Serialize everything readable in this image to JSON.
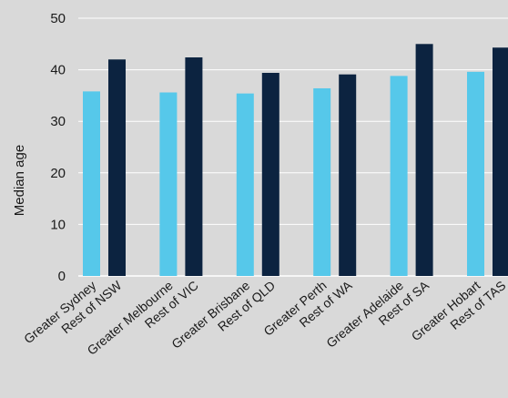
{
  "chart_data": {
    "type": "bar",
    "title": "",
    "xlabel": "",
    "ylabel": "Median age",
    "ylim": [
      0,
      50
    ],
    "yticks": [
      0,
      10,
      20,
      30,
      40,
      50
    ],
    "grid": true,
    "legend": "none",
    "categories": [
      "Greater Sydney",
      "Rest of NSW",
      "Greater Melbourne",
      "Rest of VIC",
      "Greater Brisbane",
      "Rest of QLD",
      "Greater Perth",
      "Rest of WA",
      "Greater Adelaide",
      "Rest of SA",
      "Greater Hobart",
      "Rest of TAS"
    ],
    "values": [
      35.8,
      42.0,
      35.6,
      42.4,
      35.4,
      39.4,
      36.4,
      39.1,
      38.8,
      45.0,
      39.6,
      44.3
    ],
    "colors": {
      "greater": "#56c8ea",
      "rest": "#0c2340",
      "grid": "#ffffff",
      "axis": "#ffffff"
    }
  }
}
